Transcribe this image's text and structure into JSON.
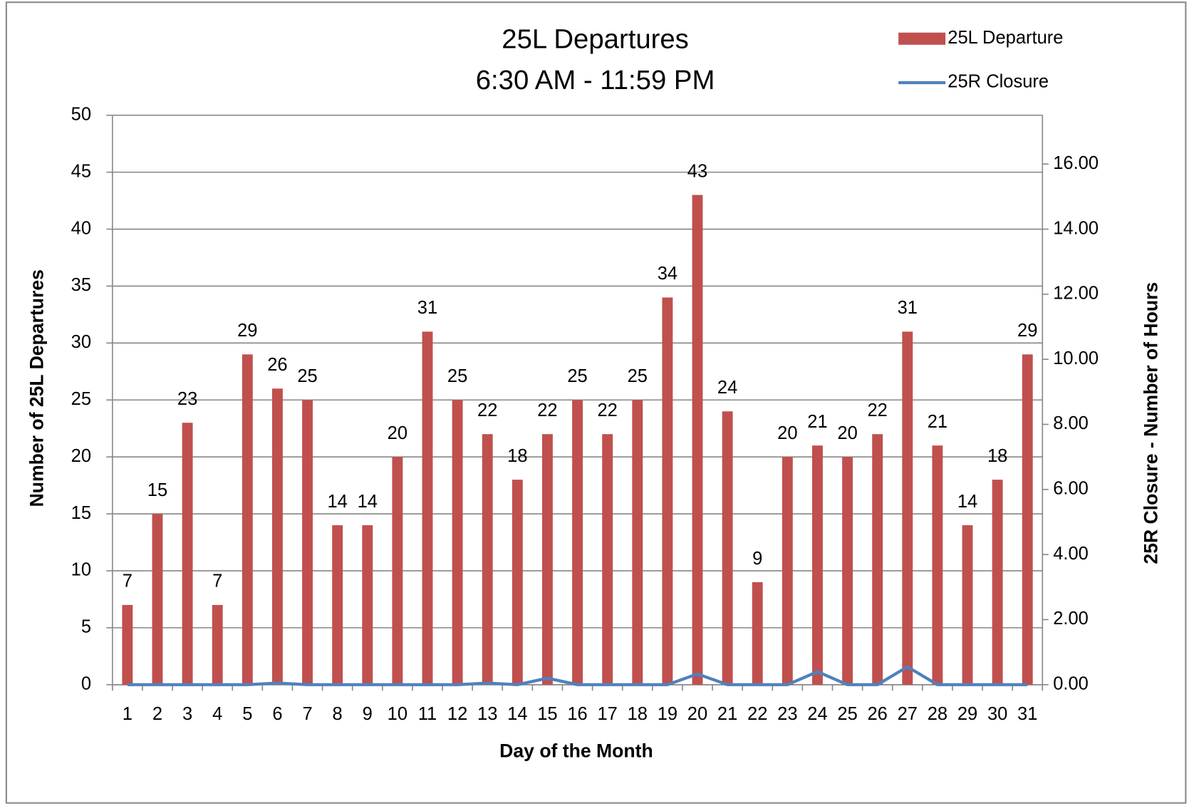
{
  "chart_data": {
    "type": "bar",
    "title": "25L Departures",
    "subtitle": "6:30 AM - 11:59 PM",
    "x_label": "Day of the Month",
    "y_label": "Number of 25L Departures",
    "y2_label": "25R Closure - Number of Hours",
    "categories": [
      "1",
      "2",
      "3",
      "4",
      "5",
      "6",
      "7",
      "8",
      "9",
      "10",
      "11",
      "12",
      "13",
      "14",
      "15",
      "16",
      "17",
      "18",
      "19",
      "20",
      "21",
      "22",
      "23",
      "24",
      "25",
      "26",
      "27",
      "28",
      "29",
      "30",
      "31"
    ],
    "series": [
      {
        "name": "25L Departure",
        "type": "bar",
        "color": "#c0504d",
        "values": [
          7,
          15,
          23,
          7,
          29,
          26,
          25,
          14,
          14,
          20,
          31,
          25,
          22,
          18,
          22,
          25,
          22,
          25,
          34,
          43,
          24,
          9,
          20,
          21,
          20,
          22,
          31,
          21,
          14,
          18,
          29
        ]
      },
      {
        "name": "25R Closure",
        "type": "line",
        "axis": "y2",
        "color": "#4f81bd",
        "values": [
          0,
          0,
          0,
          0,
          0,
          0.05,
          0,
          0,
          0,
          0,
          0,
          0,
          0.05,
          0,
          0.2,
          0,
          0,
          0,
          0,
          0.33,
          0,
          0,
          0,
          0.4,
          0,
          0,
          0.55,
          0,
          0,
          0,
          0
        ]
      }
    ],
    "ylim": [
      0,
      50
    ],
    "yticks": [
      0,
      5,
      10,
      15,
      20,
      25,
      30,
      35,
      40,
      45,
      50
    ],
    "y2lim": [
      0,
      17.5
    ],
    "y2ticks": [
      {
        "value": 0,
        "label": "0.00"
      },
      {
        "value": 2,
        "label": "2.00"
      },
      {
        "value": 4,
        "label": "4.00"
      },
      {
        "value": 6,
        "label": "6.00"
      },
      {
        "value": 8,
        "label": "8.00"
      },
      {
        "value": 10,
        "label": "10.00"
      },
      {
        "value": 12,
        "label": "12.00"
      },
      {
        "value": 14,
        "label": "14.00"
      },
      {
        "value": 16,
        "label": "16.00"
      }
    ],
    "grid": true,
    "legend": "top-right"
  }
}
